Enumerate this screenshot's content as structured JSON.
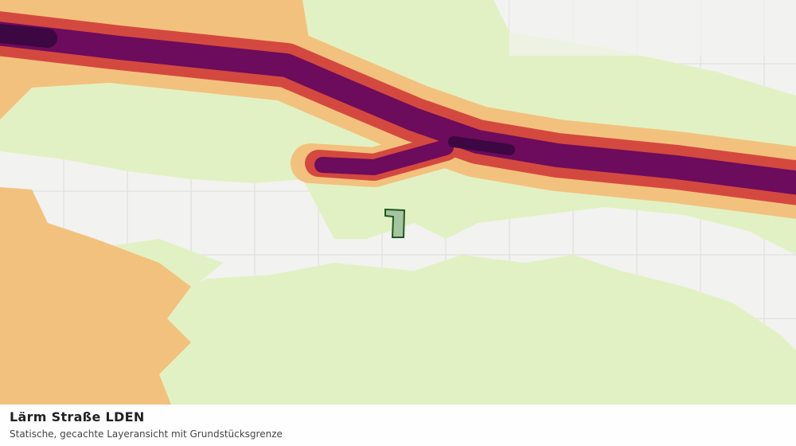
{
  "footer": {
    "title": "Lärm Straße LDEN",
    "subtitle": "Statische, gecachte Layeransicht mit Grundstücksgrenze"
  }
}
